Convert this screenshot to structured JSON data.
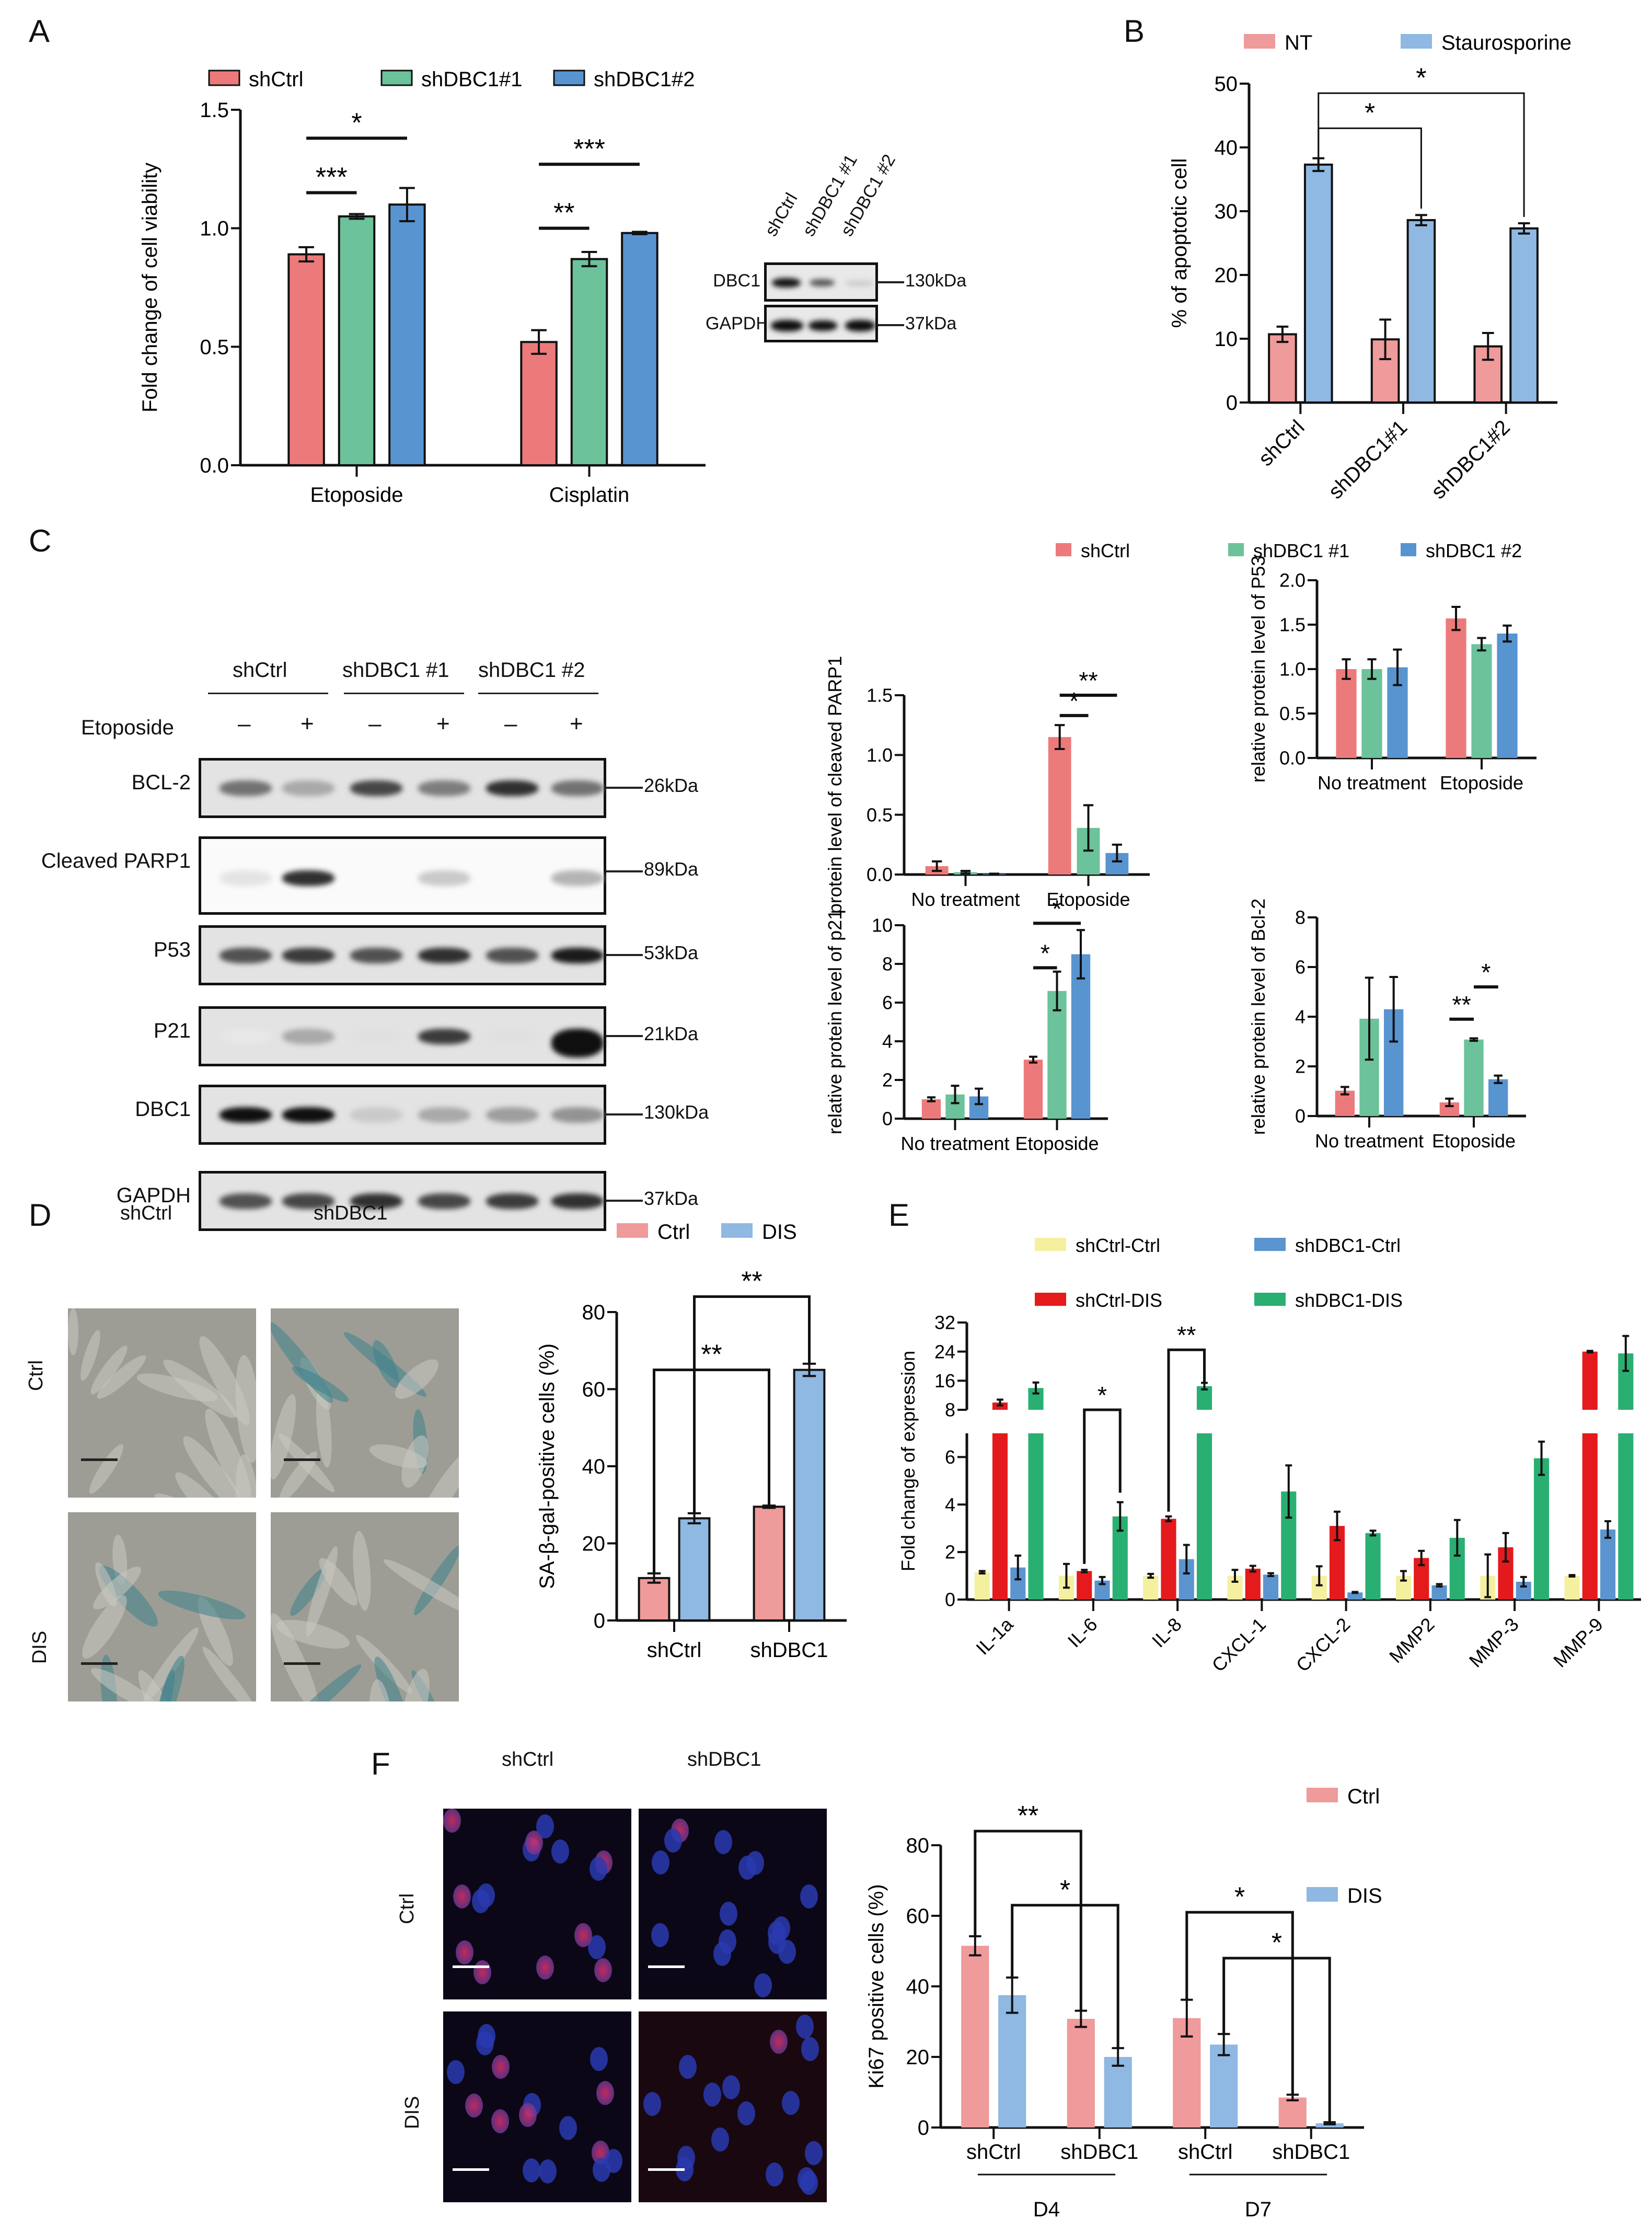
{
  "panels": {
    "A": {
      "label": "A"
    },
    "B": {
      "label": "B"
    },
    "C": {
      "label": "C"
    },
    "D": {
      "label": "D"
    },
    "E": {
      "label": "E"
    },
    "F": {
      "label": "F"
    }
  },
  "colors": {
    "shCtrl": "#ed7a7b",
    "shDBC1_1": "#6cc29a",
    "shDBC1_2": "#5894d0",
    "NT": "#ef9a9b",
    "Staurosporine": "#8fb8e2",
    "yellow": "#f4f0a0",
    "red": "#e41a1c",
    "green": "#2aaf72",
    "blue": "#5b94cf"
  },
  "blotA": {
    "lanes": [
      "shCtrl",
      "shDBC1 #1",
      "shDBC1 #2"
    ],
    "rows": [
      {
        "name": "DBC1",
        "kda": "130kDa",
        "intensity": [
          0.95,
          0.6,
          0.15
        ]
      },
      {
        "name": "GAPDH",
        "kda": "37kDa",
        "intensity": [
          1.0,
          1.0,
          1.0
        ]
      }
    ]
  },
  "blotC": {
    "groups": [
      "shCtrl",
      "shDBC1 #1",
      "shDBC1 #2"
    ],
    "treatment_label": "Etoposide",
    "treatment_signs": [
      "–",
      "+",
      "–",
      "+",
      "–",
      "+"
    ],
    "rows": [
      {
        "name": "BCL-2",
        "kda": "26kDa",
        "intensity": [
          0.55,
          0.3,
          0.75,
          0.5,
          0.85,
          0.55
        ]
      },
      {
        "name": "Cleaved PARP1",
        "kda": "89kDa",
        "intensity": [
          0.03,
          0.85,
          0.0,
          0.15,
          0.0,
          0.25
        ]
      },
      {
        "name": "P53",
        "kda": "53kDa",
        "intensity": [
          0.7,
          0.8,
          0.7,
          0.85,
          0.7,
          0.95
        ]
      },
      {
        "name": "P21",
        "kda": "21kDa",
        "intensity": [
          0.02,
          0.3,
          0.05,
          0.8,
          0.05,
          1.0
        ]
      },
      {
        "name": "DBC1",
        "kda": "130kDa",
        "intensity": [
          1.0,
          1.0,
          0.15,
          0.3,
          0.35,
          0.4
        ]
      },
      {
        "name": "GAPDH",
        "kda": "37kDa",
        "intensity": [
          0.7,
          0.75,
          0.85,
          0.75,
          0.8,
          0.85
        ]
      }
    ]
  },
  "micrographD": {
    "cols": [
      "shCtrl",
      "shDBC1"
    ],
    "rows": [
      "Ctrl",
      "DIS"
    ]
  },
  "micrographF": {
    "cols": [
      "shCtrl",
      "shDBC1"
    ],
    "rows": [
      "Ctrl",
      "DIS"
    ]
  },
  "chart_data": [
    {
      "id": "A",
      "type": "bar",
      "title": "",
      "categories": [
        "Etoposide",
        "Cisplatin"
      ],
      "series": [
        {
          "name": "shCtrl",
          "values": [
            0.89,
            0.52
          ],
          "errors": [
            0.03,
            0.05
          ]
        },
        {
          "name": "shDBC1#1",
          "values": [
            1.05,
            0.87
          ],
          "errors": [
            0.01,
            0.03
          ]
        },
        {
          "name": "shDBC1#2",
          "values": [
            1.1,
            0.98
          ],
          "errors": [
            0.07,
            0.005
          ]
        }
      ],
      "xlabel": "",
      "ylabel": "Fold change of cell viability",
      "ylim": [
        0,
        1.5
      ],
      "yticks": [
        0.0,
        0.5,
        1.0,
        1.5
      ],
      "tick_labels": [
        "0.0",
        "0.5",
        "1.0",
        "1.5"
      ],
      "legend_position": "top",
      "annotations": [
        {
          "text": "***",
          "group": 0,
          "from": 0,
          "to": 1,
          "y": 1.15
        },
        {
          "text": "*",
          "group": 0,
          "from": 0,
          "to": 2,
          "y": 1.38
        },
        {
          "text": "**",
          "group": 1,
          "from": 0,
          "to": 1,
          "y": 1.0
        },
        {
          "text": "***",
          "group": 1,
          "from": 0,
          "to": 2,
          "y": 1.27
        }
      ]
    },
    {
      "id": "B",
      "type": "bar",
      "categories": [
        "shCtrl",
        "shDBC1#1",
        "shDBC1#2"
      ],
      "series": [
        {
          "name": "NT",
          "values": [
            10.7,
            9.9,
            8.8
          ],
          "errors": [
            1.2,
            3.1,
            2.1
          ]
        },
        {
          "name": "Staurosporine",
          "values": [
            37.3,
            28.6,
            27.3
          ],
          "errors": [
            1.0,
            0.8,
            0.8
          ]
        }
      ],
      "xlabel": "",
      "ylabel": "% of apoptotic cell",
      "ylim": [
        0,
        50
      ],
      "yticks": [
        0,
        10,
        20,
        30,
        40,
        50
      ],
      "tick_labels": [
        "0",
        "10",
        "20",
        "30",
        "40",
        "50"
      ],
      "legend_position": "top",
      "annotations": [
        {
          "text": "*",
          "from_category": 0,
          "to_category": 1,
          "series": 1,
          "y": 43
        },
        {
          "text": "*",
          "from_category": 0,
          "to_category": 2,
          "series": 1,
          "y": 48.5
        }
      ]
    },
    {
      "id": "C-PARP1",
      "type": "bar",
      "categories": [
        "No treatment",
        "Etoposide"
      ],
      "series": [
        {
          "name": "shCtrl",
          "values": [
            0.07,
            1.15
          ],
          "errors": [
            0.04,
            0.1
          ]
        },
        {
          "name": "shDBC1 #1",
          "values": [
            0.02,
            0.39
          ],
          "errors": [
            0.01,
            0.19
          ]
        },
        {
          "name": "shDBC1 #2",
          "values": [
            0.005,
            0.18
          ],
          "errors": [
            0.002,
            0.07
          ]
        }
      ],
      "ylabel": "protein level of cleaved PARP1",
      "ylim": [
        0,
        1.5
      ],
      "yticks": [
        0,
        0.5,
        1.0,
        1.5
      ],
      "tick_labels": [
        "0.0",
        "0.5",
        "1.0",
        "1.5"
      ],
      "legend": [
        "shCtrl",
        "shDBC1 #1",
        "shDBC1 #2"
      ],
      "annotations": [
        {
          "text": "*",
          "group": 1,
          "from": 0,
          "to": 1,
          "y": 1.33
        },
        {
          "text": "**",
          "group": 1,
          "from": 0,
          "to": 2,
          "y": 1.5
        }
      ]
    },
    {
      "id": "C-P53",
      "type": "bar",
      "categories": [
        "No treatment",
        "Etoposide"
      ],
      "series": [
        {
          "name": "shCtrl",
          "values": [
            1.0,
            1.57
          ],
          "errors": [
            0.11,
            0.13
          ]
        },
        {
          "name": "shDBC1 #1",
          "values": [
            1.0,
            1.28
          ],
          "errors": [
            0.11,
            0.07
          ]
        },
        {
          "name": "shDBC1 #2",
          "values": [
            1.02,
            1.4
          ],
          "errors": [
            0.2,
            0.09
          ]
        }
      ],
      "ylabel": "relative protein level of P53",
      "ylim": [
        0,
        2.0
      ],
      "yticks": [
        0,
        0.5,
        1.0,
        1.5,
        2.0
      ],
      "tick_labels": [
        "0.0",
        "0.5",
        "1.0",
        "1.5",
        "2.0"
      ],
      "annotations": []
    },
    {
      "id": "C-p21",
      "type": "bar",
      "categories": [
        "No treatment",
        "Etoposide"
      ],
      "series": [
        {
          "name": "shCtrl",
          "values": [
            1.0,
            3.05
          ],
          "errors": [
            0.1,
            0.15
          ]
        },
        {
          "name": "shDBC1 #1",
          "values": [
            1.25,
            6.6
          ],
          "errors": [
            0.45,
            1.0
          ]
        },
        {
          "name": "shDBC1 #2",
          "values": [
            1.15,
            8.5
          ],
          "errors": [
            0.4,
            1.25
          ]
        }
      ],
      "ylabel": "relative protein level of p21",
      "ylim": [
        0,
        10
      ],
      "yticks": [
        0,
        2,
        4,
        6,
        8,
        10
      ],
      "tick_labels": [
        "0",
        "2",
        "4",
        "6",
        "8",
        "10"
      ],
      "annotations": [
        {
          "text": "*",
          "group": 1,
          "from": 0,
          "to": 1,
          "y": 7.8
        },
        {
          "text": "*",
          "group": 1,
          "from": 0,
          "to": 2,
          "y": 10.1
        }
      ]
    },
    {
      "id": "C-Bcl2",
      "type": "bar",
      "categories": [
        "No treatment",
        "Etoposide"
      ],
      "series": [
        {
          "name": "shCtrl",
          "values": [
            1.02,
            0.55
          ],
          "errors": [
            0.15,
            0.15
          ]
        },
        {
          "name": "shDBC1 #1",
          "values": [
            3.92,
            3.08
          ],
          "errors": [
            1.65,
            0.05
          ]
        },
        {
          "name": "shDBC1 #2",
          "values": [
            4.3,
            1.48
          ],
          "errors": [
            1.3,
            0.15
          ]
        }
      ],
      "ylabel": "relative protein level of Bcl-2",
      "ylim": [
        0,
        8
      ],
      "yticks": [
        0,
        2,
        4,
        6,
        8
      ],
      "tick_labels": [
        "0",
        "2",
        "4",
        "6",
        "8"
      ],
      "annotations": [
        {
          "text": "**",
          "group": 1,
          "from": 0,
          "to": 1,
          "y": 3.9
        },
        {
          "text": "*",
          "group": 1,
          "from": 1,
          "to": 2,
          "y": 5.2
        }
      ]
    },
    {
      "id": "D",
      "type": "bar",
      "categories": [
        "shCtrl",
        "shDBC1"
      ],
      "series": [
        {
          "name": "Ctrl",
          "values": [
            11,
            29.5
          ],
          "errors": [
            1.2,
            0.3
          ]
        },
        {
          "name": "DIS",
          "values": [
            26.5,
            65
          ],
          "errors": [
            1.3,
            1.6
          ]
        }
      ],
      "ylabel": "SA-β-gal-positive cells (%)",
      "ylim": [
        0,
        80
      ],
      "yticks": [
        0,
        20,
        40,
        60,
        80
      ],
      "tick_labels": [
        "0",
        "20",
        "40",
        "60",
        "80"
      ],
      "legend_position": "top",
      "annotations": [
        {
          "text": "**",
          "from": [
            0,
            0
          ],
          "to": [
            1,
            0
          ],
          "y": 65
        },
        {
          "text": "**",
          "from": [
            0,
            1
          ],
          "to": [
            1,
            1
          ],
          "y": 84
        }
      ]
    },
    {
      "id": "E",
      "type": "bar",
      "categories": [
        "IL-1a",
        "IL-6",
        "IL-8",
        "CXCL-1",
        "CXCL-2",
        "MMP2",
        "MMP-3",
        "MMP-9"
      ],
      "series": [
        {
          "name": "shCtrl-Ctrl",
          "values": [
            1.15,
            1.0,
            1.0,
            1.0,
            1.0,
            1.0,
            1.0,
            1.0
          ],
          "errors": [
            0.05,
            0.5,
            0.08,
            0.25,
            0.4,
            0.2,
            0.9,
            0.03
          ]
        },
        {
          "name": "shCtrl-DIS",
          "values": [
            10,
            1.2,
            3.4,
            1.3,
            3.1,
            1.75,
            2.2,
            24
          ],
          "errors": [
            0.8,
            0.05,
            0.1,
            0.12,
            0.6,
            0.3,
            0.6,
            0.2
          ]
        },
        {
          "name": "shDBC1-Ctrl",
          "values": [
            1.35,
            0.8,
            1.7,
            1.05,
            0.3,
            0.6,
            0.75,
            2.95
          ],
          "errors": [
            0.5,
            0.15,
            0.6,
            0.06,
            0.02,
            0.05,
            0.2,
            0.35
          ]
        },
        {
          "name": "shDBC1-DIS",
          "values": [
            14,
            3.5,
            14.5,
            4.55,
            2.8,
            2.6,
            5.95,
            23.5
          ],
          "errors": [
            1.5,
            0.6,
            0.9,
            1.1,
            0.1,
            0.75,
            0.7,
            4.8
          ]
        }
      ],
      "ylabel": "Fold change of expression",
      "axis_break": [
        7,
        8
      ],
      "ylim": [
        0,
        32
      ],
      "yticks": [
        0,
        2,
        4,
        6,
        8,
        16,
        24,
        32
      ],
      "tick_labels": [
        "0",
        "2",
        "4",
        "6",
        "8",
        "16",
        "24",
        "32"
      ],
      "legend_position": "top",
      "annotations": [
        {
          "text": "*",
          "category_from": [
            1,
            1
          ],
          "category_to": [
            1,
            3
          ]
        },
        {
          "text": "**",
          "category_from": [
            2,
            1
          ],
          "category_to": [
            2,
            3
          ]
        }
      ]
    },
    {
      "id": "F",
      "type": "bar",
      "categories": [
        "shCtrl",
        "shDBC1",
        "shCtrl",
        "shDBC1"
      ],
      "category_groups": [
        {
          "label": "D4",
          "span": [
            0,
            1
          ]
        },
        {
          "label": "D7",
          "span": [
            2,
            3
          ]
        }
      ],
      "series": [
        {
          "name": "Ctrl",
          "values": [
            51.5,
            30.8,
            31,
            8.5
          ],
          "errors": [
            2.7,
            2.3,
            5.2,
            0.8
          ]
        },
        {
          "name": "DIS",
          "values": [
            37.5,
            20,
            23.5,
            1.2
          ],
          "errors": [
            5,
            2.5,
            3,
            0.3
          ]
        }
      ],
      "ylabel": "Ki67 positive cells (%)",
      "ylim": [
        0,
        80
      ],
      "yticks": [
        0,
        20,
        40,
        60,
        80
      ],
      "tick_labels": [
        "0",
        "20",
        "40",
        "60",
        "80"
      ],
      "legend_position": "right",
      "annotations": [
        {
          "text": "**",
          "from": [
            0,
            0
          ],
          "to": [
            1,
            0
          ],
          "y": 84
        },
        {
          "text": "*",
          "from": [
            0,
            1
          ],
          "to": [
            1,
            1
          ],
          "y": 63
        },
        {
          "text": "*",
          "from": [
            2,
            0
          ],
          "to": [
            3,
            0
          ],
          "y": 61
        },
        {
          "text": "*",
          "from": [
            2,
            1
          ],
          "to": [
            3,
            1
          ],
          "y": 48
        }
      ]
    }
  ]
}
